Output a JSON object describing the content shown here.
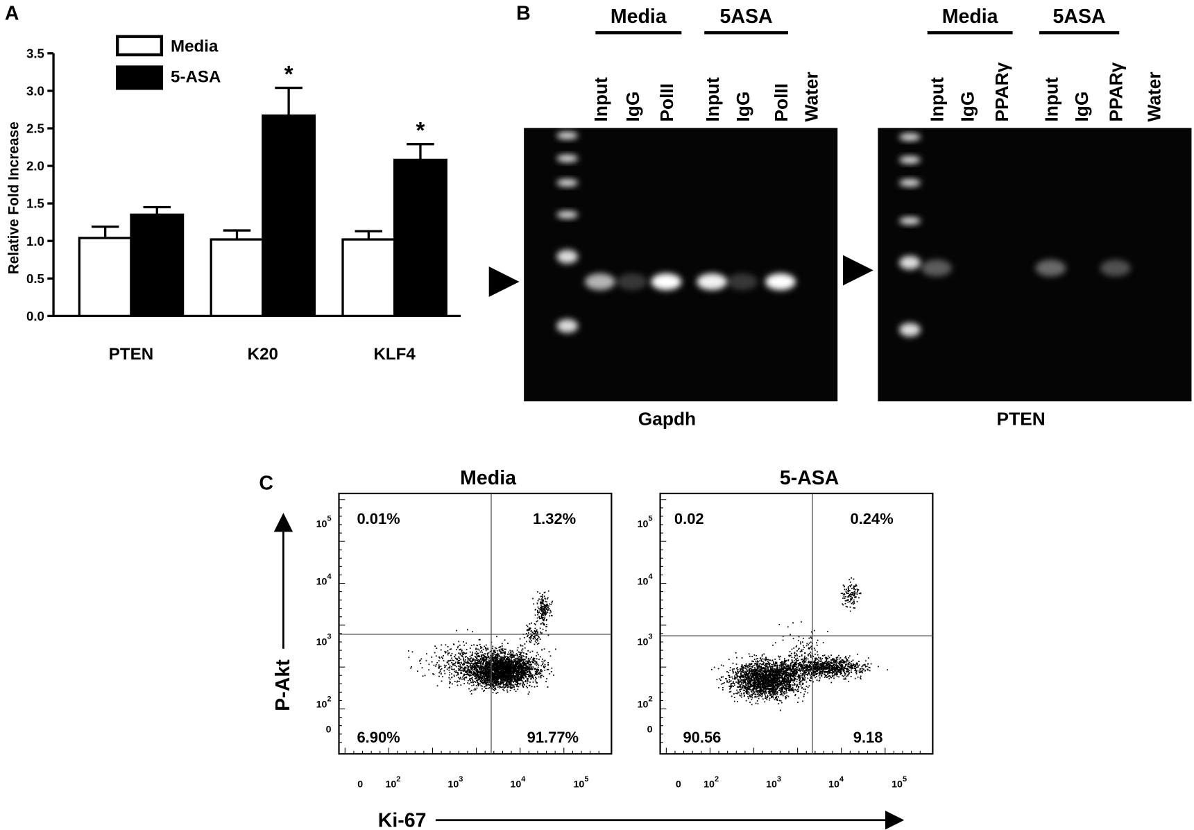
{
  "chart_data": {
    "type": "bar",
    "panel_label": "A",
    "ylabel": "Relative Fold Increase",
    "categories": [
      "PTEN",
      "K20",
      "KLF4"
    ],
    "series": [
      {
        "name": "Media",
        "color": "#ffffff",
        "values": [
          1.04,
          1.02,
          1.02
        ],
        "errors": [
          0.15,
          0.12,
          0.11
        ]
      },
      {
        "name": "5-ASA",
        "color": "#000000",
        "values": [
          1.35,
          2.67,
          2.08
        ],
        "errors": [
          0.1,
          0.37,
          0.21
        ],
        "marker_labels": [
          null,
          "*",
          "*"
        ]
      }
    ],
    "ylim": [
      0,
      3.5
    ],
    "yticks": [
      {
        "value": 0,
        "label": "0.0"
      },
      0.5,
      {
        "value": 1,
        "label": "1.0"
      },
      1.5,
      {
        "value": 2,
        "label": "2.0"
      },
      2.5,
      {
        "value": 3,
        "label": "3.0"
      },
      3.5
    ]
  },
  "gel_panel": {
    "panel_label": "B",
    "gels": [
      {
        "groups": [
          "Media",
          "5ASA"
        ],
        "lanes": [
          "Input",
          "IgG",
          "PolII",
          "Input",
          "IgG",
          "PolII",
          "Water"
        ],
        "caption": "Gapdh"
      },
      {
        "groups": [
          "Media",
          "5ASA"
        ],
        "lanes": [
          "Input",
          "IgG",
          "PPARγ",
          "Input",
          "IgG",
          "PPARγ",
          "Water"
        ],
        "caption": "PTEN"
      }
    ]
  },
  "flow_panel": {
    "panel_label": "C",
    "xlabel": "Ki-67",
    "ylabel": "P-Akt",
    "xtick_labels": [
      {
        "base": "0"
      },
      {
        "base": "10",
        "exp": "2"
      },
      {
        "base": "10",
        "exp": "3"
      },
      {
        "base": "10",
        "exp": "4"
      },
      {
        "base": "10",
        "exp": "5"
      }
    ],
    "ytick_labels": [
      {
        "base": "0"
      },
      {
        "base": "10",
        "exp": "2"
      },
      {
        "base": "10",
        "exp": "3"
      },
      {
        "base": "10",
        "exp": "4"
      },
      {
        "base": "10",
        "exp": "5"
      }
    ],
    "plots": [
      {
        "title": "Media",
        "quadrants": [
          "0.01%",
          "1.32%",
          "6.90%",
          "91.77%"
        ]
      },
      {
        "title": "5-ASA",
        "quadrants": [
          "0.02",
          "0.24%",
          "90.56",
          "9.18"
        ]
      }
    ]
  }
}
